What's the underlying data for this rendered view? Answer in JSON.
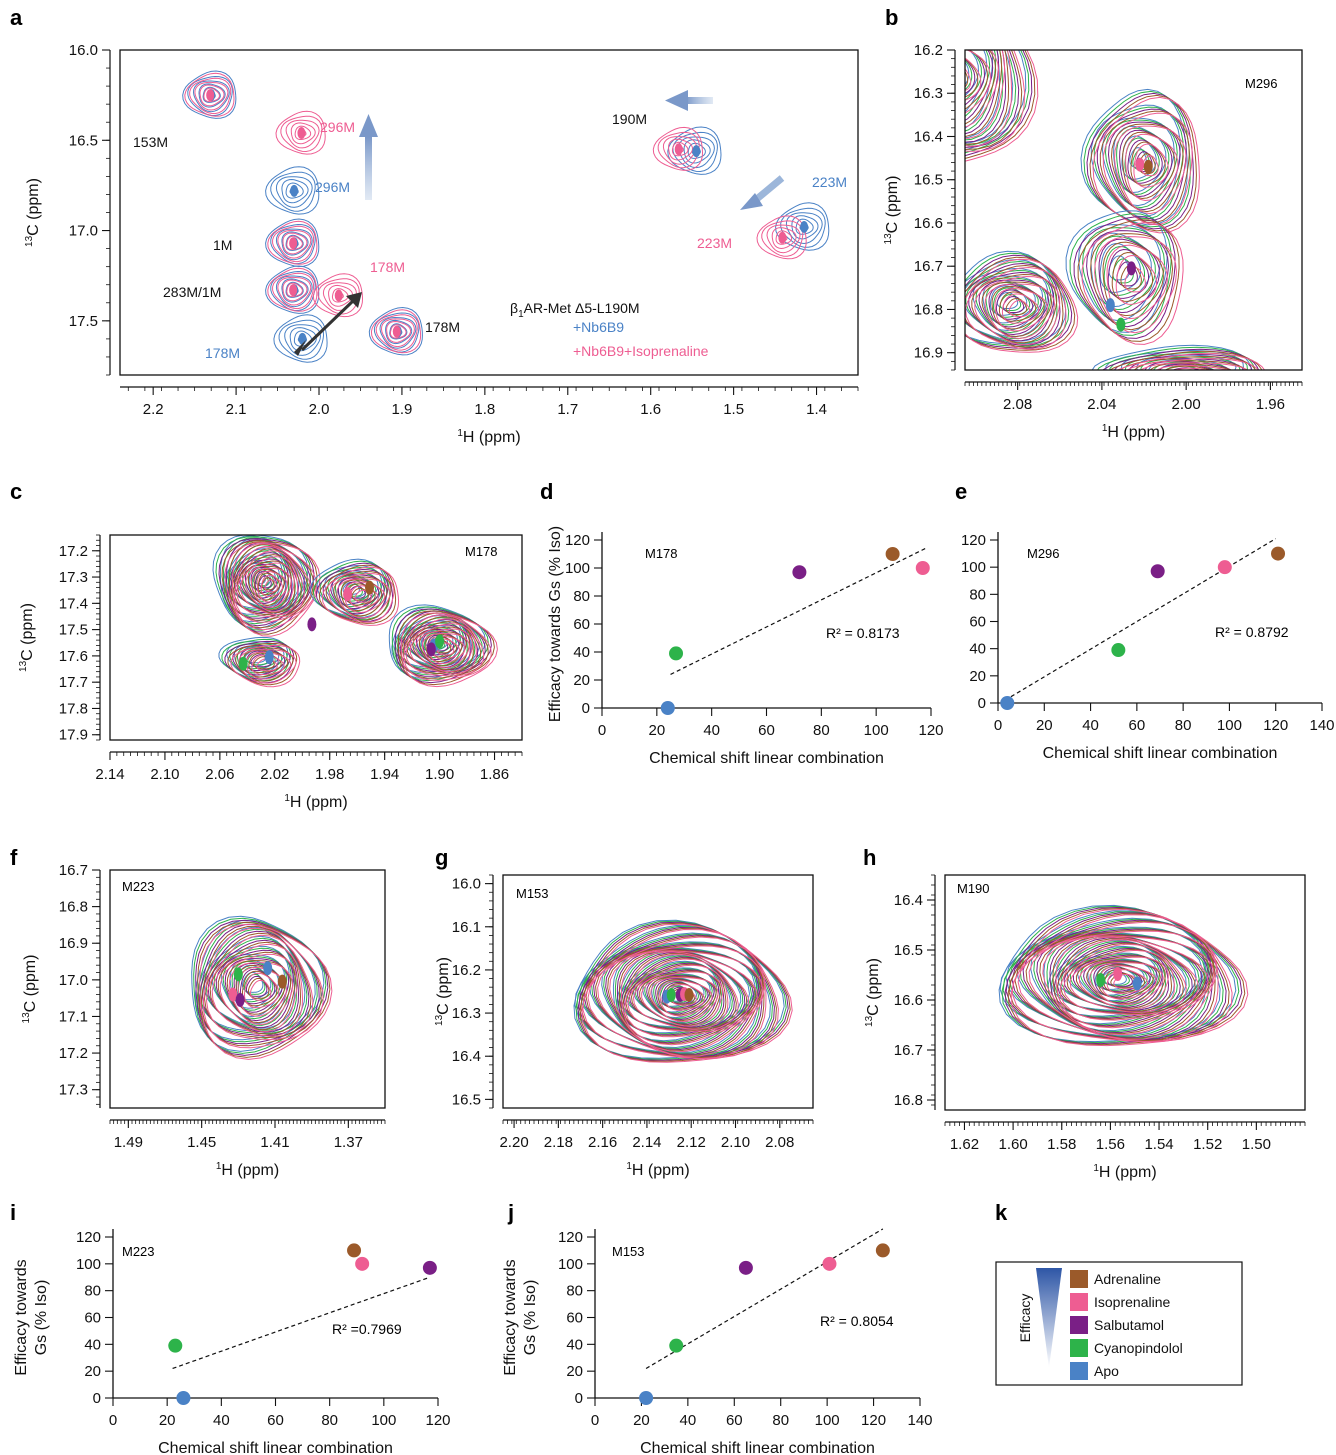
{
  "colors": {
    "Adrenaline": "#9b5a2a",
    "Isoprenaline": "#ee5d92",
    "Salbutamol": "#7a1f86",
    "Cyanopindolol": "#2db34a",
    "Apo": "#4a82c6",
    "blue_series": "#4a82c6",
    "pink_series": "#ee5d92"
  },
  "legend_k": {
    "entries": [
      "Adrenaline",
      "Isoprenaline",
      "Salbutamol",
      "Cyanopindolol",
      "Apo"
    ],
    "efficacy_label": "Efficacy"
  },
  "chart_data": [
    {
      "panel": "a",
      "type": "scatter",
      "subtype": "nmr-contour",
      "xlabel": "1H (ppm)",
      "ylabel": "13C (ppm)",
      "xlim": [
        2.24,
        1.35
      ],
      "ylim": [
        16.0,
        17.8
      ],
      "x_reversed": true,
      "xticks": [
        "2.2",
        "2.1",
        "2.0",
        "1.9",
        "1.8",
        "1.7",
        "1.6",
        "1.5",
        "1.4"
      ],
      "yticks": [
        "16.0",
        "16.5",
        "17.0",
        "17.5"
      ],
      "legend": {
        "title": "β1AR-Met Δ5-L190M",
        "series": [
          "+Nb6B9",
          "+Nb6B9+Isoprenaline"
        ]
      },
      "peaks_blue": [
        {
          "label": "153M",
          "x": 2.13,
          "y": 16.25
        },
        {
          "label": "296M",
          "x": 2.03,
          "y": 16.78
        },
        {
          "label": "1M",
          "x": 2.03,
          "y": 17.07
        },
        {
          "label": "283M/1M",
          "x": 2.03,
          "y": 17.33
        },
        {
          "label": "178M",
          "x": 2.02,
          "y": 17.6
        },
        {
          "label": "178M",
          "x": 1.905,
          "y": 17.56
        },
        {
          "label": "190M",
          "x": 1.545,
          "y": 16.56
        },
        {
          "label": "223M",
          "x": 1.415,
          "y": 16.98
        }
      ],
      "peaks_pink": [
        {
          "label": "153M",
          "x": 2.13,
          "y": 16.25
        },
        {
          "label": "296M",
          "x": 2.02,
          "y": 16.46
        },
        {
          "label": "1M",
          "x": 2.03,
          "y": 17.07
        },
        {
          "label": "283M/1M",
          "x": 2.03,
          "y": 17.33
        },
        {
          "label": "178M",
          "x": 1.975,
          "y": 17.36
        },
        {
          "label": "178M",
          "x": 1.905,
          "y": 17.56
        },
        {
          "label": "190M",
          "x": 1.565,
          "y": 16.55
        },
        {
          "label": "223M",
          "x": 1.44,
          "y": 17.04
        }
      ]
    },
    {
      "panel": "b",
      "type": "scatter",
      "subtype": "nmr-contour",
      "title": "M296",
      "xlabel": "1H (ppm)",
      "ylabel": "13C (ppm)",
      "xlim": [
        2.105,
        1.945
      ],
      "ylim": [
        16.2,
        16.94
      ],
      "x_reversed": true,
      "xticks": [
        "2.08",
        "2.04",
        "2.00",
        "1.96"
      ],
      "yticks": [
        "16.2",
        "16.3",
        "16.4",
        "16.5",
        "16.6",
        "16.7",
        "16.8",
        "16.9"
      ],
      "peaks": [
        {
          "ligand": "Isoprenaline",
          "x": 2.022,
          "y": 16.465
        },
        {
          "ligand": "Adrenaline",
          "x": 2.018,
          "y": 16.47
        },
        {
          "ligand": "Salbutamol",
          "x": 2.026,
          "y": 16.705
        },
        {
          "ligand": "Apo",
          "x": 2.036,
          "y": 16.79
        },
        {
          "ligand": "Cyanopindolol",
          "x": 2.031,
          "y": 16.835
        }
      ]
    },
    {
      "panel": "c",
      "type": "scatter",
      "subtype": "nmr-contour",
      "title": "M178",
      "xlabel": "1H (ppm)",
      "ylabel": "13C (ppm)",
      "xlim": [
        2.14,
        1.84
      ],
      "ylim": [
        17.14,
        17.92
      ],
      "x_reversed": true,
      "xticks": [
        "2.14",
        "2.10",
        "2.06",
        "2.02",
        "1.98",
        "1.94",
        "1.90",
        "1.86"
      ],
      "yticks": [
        "17.2",
        "17.3",
        "17.4",
        "17.5",
        "17.6",
        "17.7",
        "17.8",
        "17.9"
      ],
      "peaks": [
        {
          "ligand": "Isoprenaline",
          "x": 1.967,
          "y": 17.365
        },
        {
          "ligand": "Adrenaline",
          "x": 1.951,
          "y": 17.34
        },
        {
          "ligand": "Salbutamol",
          "x": 1.993,
          "y": 17.48
        },
        {
          "ligand": "Apo",
          "x": 2.024,
          "y": 17.605
        },
        {
          "ligand": "Cyanopindolol",
          "x": 2.043,
          "y": 17.63
        },
        {
          "ligand": "Apo",
          "x": 1.904,
          "y": 17.56
        },
        {
          "ligand": "Cyanopindolol",
          "x": 1.9,
          "y": 17.545
        },
        {
          "ligand": "Salbutamol",
          "x": 1.906,
          "y": 17.575
        }
      ]
    },
    {
      "panel": "d",
      "type": "scatter",
      "title": "M178",
      "xlabel": "Chemical shift linear combination",
      "ylabel": "Efficacy towards Gs (% Iso)",
      "xlim": [
        0,
        120
      ],
      "ylim": [
        0,
        120
      ],
      "xticks": [
        "0",
        "20",
        "40",
        "60",
        "80",
        "100",
        "120"
      ],
      "yticks": [
        "0",
        "20",
        "40",
        "60",
        "80",
        "100",
        "120"
      ],
      "annotation": "R² = 0.8173",
      "fit": [
        [
          25,
          24
        ],
        [
          118,
          114
        ]
      ],
      "points": [
        {
          "ligand": "Apo",
          "x": 24,
          "y": 0
        },
        {
          "ligand": "Cyanopindolol",
          "x": 27,
          "y": 39
        },
        {
          "ligand": "Salbutamol",
          "x": 72,
          "y": 97
        },
        {
          "ligand": "Adrenaline",
          "x": 106,
          "y": 110
        },
        {
          "ligand": "Isoprenaline",
          "x": 117,
          "y": 100
        }
      ]
    },
    {
      "panel": "e",
      "type": "scatter",
      "title": "M296",
      "xlabel": "Chemical shift linear combination",
      "ylabel": "",
      "xlim": [
        0,
        140
      ],
      "ylim": [
        0,
        120
      ],
      "xticks": [
        "0",
        "20",
        "40",
        "60",
        "80",
        "100",
        "120",
        "140"
      ],
      "yticks": [
        "0",
        "20",
        "40",
        "60",
        "80",
        "100",
        "120"
      ],
      "annotation": "R² = 0.8792",
      "fit": [
        [
          3,
          2
        ],
        [
          120,
          121
        ]
      ],
      "points": [
        {
          "ligand": "Apo",
          "x": 4,
          "y": 0
        },
        {
          "ligand": "Cyanopindolol",
          "x": 52,
          "y": 39
        },
        {
          "ligand": "Salbutamol",
          "x": 69,
          "y": 97
        },
        {
          "ligand": "Isoprenaline",
          "x": 98,
          "y": 100
        },
        {
          "ligand": "Adrenaline",
          "x": 121,
          "y": 110
        }
      ]
    },
    {
      "panel": "f",
      "type": "scatter",
      "subtype": "nmr-contour",
      "title": "M223",
      "xlabel": "1H (ppm)",
      "ylabel": "13C (ppm)",
      "xlim": [
        1.5,
        1.35
      ],
      "ylim": [
        16.7,
        17.35
      ],
      "x_reversed": true,
      "xticks": [
        "1.49",
        "1.45",
        "1.41",
        "1.37"
      ],
      "yticks": [
        "16.7",
        "16.8",
        "16.9",
        "17.0",
        "17.1",
        "17.2",
        "17.3"
      ],
      "peaks": [
        {
          "ligand": "Cyanopindolol",
          "x": 1.43,
          "y": 16.985
        },
        {
          "ligand": "Apo",
          "x": 1.414,
          "y": 16.968
        },
        {
          "ligand": "Adrenaline",
          "x": 1.406,
          "y": 17.005
        },
        {
          "ligand": "Isoprenaline",
          "x": 1.433,
          "y": 17.04
        },
        {
          "ligand": "Salbutamol",
          "x": 1.429,
          "y": 17.055
        }
      ]
    },
    {
      "panel": "g",
      "type": "scatter",
      "subtype": "nmr-contour",
      "title": "M153",
      "xlabel": "1H (ppm)",
      "ylabel": "13C (ppm)",
      "xlim": [
        2.205,
        2.065
      ],
      "ylim": [
        15.98,
        16.52
      ],
      "x_reversed": true,
      "xticks": [
        "2.20",
        "2.18",
        "2.16",
        "2.14",
        "2.12",
        "2.10",
        "2.08"
      ],
      "yticks": [
        "16.0",
        "16.1",
        "16.2",
        "16.3",
        "16.4",
        "16.5"
      ],
      "peaks": [
        {
          "ligand": "Apo",
          "x": 2.131,
          "y": 16.262
        },
        {
          "ligand": "Cyanopindolol",
          "x": 2.129,
          "y": 16.258
        },
        {
          "ligand": "Salbutamol",
          "x": 2.125,
          "y": 16.258
        },
        {
          "ligand": "Isoprenaline",
          "x": 2.123,
          "y": 16.256
        },
        {
          "ligand": "Adrenaline",
          "x": 2.121,
          "y": 16.258
        }
      ]
    },
    {
      "panel": "h",
      "type": "scatter",
      "subtype": "nmr-contour",
      "title": "M190",
      "xlabel": "1H (ppm)",
      "ylabel": "13C (ppm)",
      "xlim": [
        1.628,
        1.48
      ],
      "ylim": [
        16.35,
        16.82
      ],
      "x_reversed": true,
      "xticks": [
        "1.62",
        "1.60",
        "1.58",
        "1.56",
        "1.54",
        "1.52",
        "1.50"
      ],
      "yticks": [
        "16.4",
        "16.5",
        "16.6",
        "16.7",
        "16.8"
      ],
      "peaks": [
        {
          "ligand": "Cyanopindolol",
          "x": 1.564,
          "y": 16.56
        },
        {
          "ligand": "Isoprenaline",
          "x": 1.557,
          "y": 16.548
        },
        {
          "ligand": "Apo",
          "x": 1.549,
          "y": 16.567
        }
      ]
    },
    {
      "panel": "i",
      "type": "scatter",
      "title": "M223",
      "xlabel": "Chemical shift linear combination",
      "ylabel": "Efficacy towards Gs (% Iso)",
      "xlim": [
        0,
        120
      ],
      "ylim": [
        0,
        120
      ],
      "xticks": [
        "0",
        "20",
        "40",
        "60",
        "80",
        "100",
        "120"
      ],
      "yticks": [
        "0",
        "20",
        "40",
        "60",
        "80",
        "100",
        "120"
      ],
      "annotation": "R² =0.7969",
      "fit": [
        [
          22,
          22
        ],
        [
          117,
          90
        ]
      ],
      "points": [
        {
          "ligand": "Cyanopindolol",
          "x": 23,
          "y": 39
        },
        {
          "ligand": "Apo",
          "x": 26,
          "y": 0
        },
        {
          "ligand": "Adrenaline",
          "x": 89,
          "y": 110
        },
        {
          "ligand": "Isoprenaline",
          "x": 92,
          "y": 100
        },
        {
          "ligand": "Salbutamol",
          "x": 117,
          "y": 97
        }
      ]
    },
    {
      "panel": "j",
      "type": "scatter",
      "title": "M153",
      "xlabel": "Chemical shift linear combination",
      "ylabel": "Efficacy towards Gs (% Iso)",
      "xlim": [
        0,
        140
      ],
      "ylim": [
        0,
        120
      ],
      "xticks": [
        "0",
        "20",
        "40",
        "60",
        "80",
        "100",
        "120",
        "140"
      ],
      "yticks": [
        "0",
        "20",
        "40",
        "60",
        "80",
        "100",
        "120"
      ],
      "annotation": "R² = 0.8054",
      "fit": [
        [
          22,
          22
        ],
        [
          124,
          126
        ]
      ],
      "points": [
        {
          "ligand": "Apo",
          "x": 22,
          "y": 0
        },
        {
          "ligand": "Cyanopindolol",
          "x": 35,
          "y": 39
        },
        {
          "ligand": "Salbutamol",
          "x": 65,
          "y": 97
        },
        {
          "ligand": "Isoprenaline",
          "x": 101,
          "y": 100
        },
        {
          "ligand": "Adrenaline",
          "x": 124,
          "y": 110
        }
      ]
    }
  ]
}
